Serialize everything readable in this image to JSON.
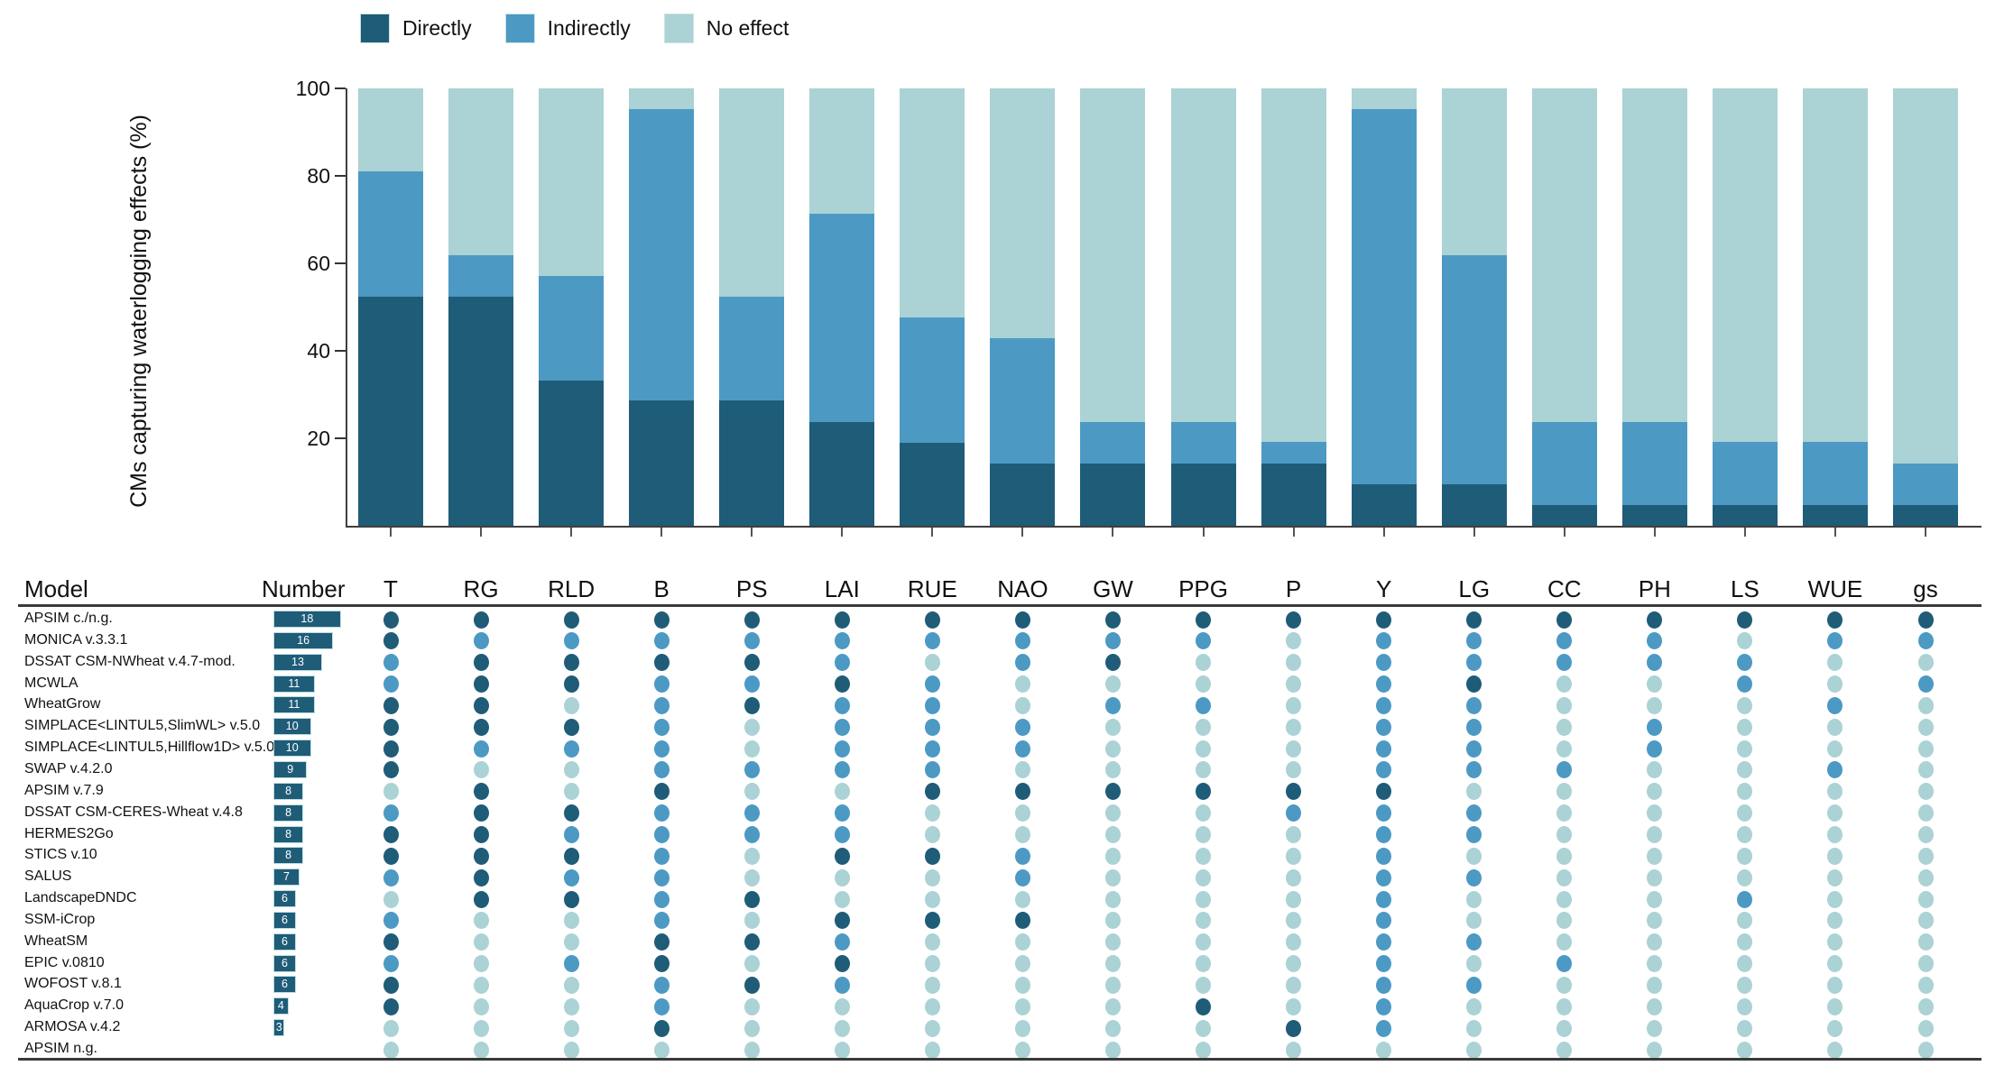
{
  "legend": {
    "items": [
      {
        "label": "Directly",
        "code": "D",
        "color": "#1f5c78"
      },
      {
        "label": "Indirectly",
        "code": "I",
        "color": "#4c99c4"
      },
      {
        "label": "No effect",
        "code": "N",
        "color": "#abd2d4"
      }
    ]
  },
  "chart_data": {
    "type": "bar",
    "stacked": true,
    "title": "",
    "xlabel": "",
    "ylabel": "CMs capturing waterlogging effects (%)",
    "ylim": [
      0,
      100
    ],
    "yticks": [
      100,
      80,
      60,
      40,
      20
    ],
    "grid": false,
    "legend_position": "top-left",
    "categories": [
      "T",
      "RG",
      "RLD",
      "B",
      "PS",
      "LAI",
      "RUE",
      "NAO",
      "GW",
      "PPG",
      "P",
      "Y",
      "LG",
      "CC",
      "PH",
      "LS",
      "WUE",
      "gs"
    ],
    "series": [
      {
        "name": "Directly",
        "color": "#1f5c78",
        "values": [
          52.4,
          52.4,
          33.3,
          28.6,
          28.6,
          23.8,
          19.0,
          14.3,
          14.3,
          14.3,
          14.3,
          9.5,
          9.5,
          4.8,
          4.8,
          4.8,
          4.8,
          4.8
        ]
      },
      {
        "name": "Indirectly",
        "color": "#4c99c4",
        "values": [
          28.6,
          9.5,
          23.8,
          66.7,
          23.8,
          47.6,
          28.6,
          28.6,
          9.5,
          9.5,
          4.8,
          85.7,
          52.4,
          19.0,
          19.0,
          14.3,
          14.3,
          9.5
        ]
      },
      {
        "name": "No effect",
        "color": "#abd2d4",
        "values": [
          19.0,
          38.1,
          42.9,
          4.8,
          47.6,
          28.6,
          52.4,
          57.1,
          76.2,
          76.2,
          81.0,
          4.8,
          38.1,
          76.2,
          76.2,
          81.0,
          81.0,
          85.7
        ]
      }
    ]
  },
  "table": {
    "model_header": "Model",
    "number_header": "Number",
    "effect_columns": [
      "T",
      "RG",
      "RLD",
      "B",
      "PS",
      "LAI",
      "RUE",
      "NAO",
      "GW",
      "PPG",
      "P",
      "Y",
      "LG",
      "CC",
      "PH",
      "LS",
      "WUE",
      "gs"
    ],
    "effect_key": {
      "D": "Directly",
      "I": "Indirectly",
      "N": "No effect"
    },
    "rows": [
      {
        "model": "APSIM c./n.g.",
        "number": 18,
        "effects": [
          "D",
          "D",
          "D",
          "D",
          "D",
          "D",
          "D",
          "D",
          "D",
          "D",
          "D",
          "D",
          "D",
          "D",
          "D",
          "D",
          "D",
          "D"
        ]
      },
      {
        "model": "MONICA v.3.3.1",
        "number": 16,
        "effects": [
          "D",
          "I",
          "I",
          "I",
          "I",
          "I",
          "I",
          "I",
          "I",
          "I",
          "N",
          "I",
          "I",
          "I",
          "I",
          "N",
          "I",
          "I"
        ]
      },
      {
        "model": "DSSAT CSM-NWheat v.4.7-mod.",
        "number": 13,
        "effects": [
          "I",
          "D",
          "D",
          "D",
          "D",
          "I",
          "N",
          "I",
          "D",
          "N",
          "N",
          "I",
          "I",
          "I",
          "I",
          "I",
          "N",
          "N"
        ]
      },
      {
        "model": "MCWLA",
        "number": 11,
        "effects": [
          "I",
          "D",
          "D",
          "I",
          "I",
          "D",
          "I",
          "N",
          "N",
          "N",
          "N",
          "I",
          "D",
          "N",
          "N",
          "I",
          "N",
          "I"
        ]
      },
      {
        "model": "WheatGrow",
        "number": 11,
        "effects": [
          "D",
          "D",
          "N",
          "I",
          "D",
          "I",
          "I",
          "N",
          "I",
          "I",
          "N",
          "I",
          "I",
          "N",
          "N",
          "N",
          "I",
          "N"
        ]
      },
      {
        "model": "SIMPLACE<LINTUL5,SlimWL> v.5.0",
        "number": 10,
        "effects": [
          "D",
          "D",
          "D",
          "I",
          "N",
          "I",
          "I",
          "I",
          "N",
          "N",
          "N",
          "I",
          "I",
          "N",
          "I",
          "N",
          "N",
          "N"
        ]
      },
      {
        "model": "SIMPLACE<LINTUL5,Hillflow1D> v.5.0",
        "number": 10,
        "effects": [
          "D",
          "I",
          "I",
          "I",
          "N",
          "I",
          "I",
          "I",
          "N",
          "N",
          "N",
          "I",
          "I",
          "N",
          "I",
          "N",
          "N",
          "N"
        ]
      },
      {
        "model": "SWAP v.4.2.0",
        "number": 9,
        "effects": [
          "D",
          "N",
          "N",
          "I",
          "I",
          "I",
          "I",
          "N",
          "N",
          "N",
          "N",
          "I",
          "I",
          "I",
          "N",
          "N",
          "I",
          "N"
        ]
      },
      {
        "model": "APSIM v.7.9",
        "number": 8,
        "effects": [
          "N",
          "D",
          "N",
          "D",
          "N",
          "N",
          "D",
          "D",
          "D",
          "D",
          "D",
          "D",
          "N",
          "N",
          "N",
          "N",
          "N",
          "N"
        ]
      },
      {
        "model": "DSSAT CSM-CERES-Wheat v.4.8",
        "number": 8,
        "effects": [
          "I",
          "D",
          "D",
          "I",
          "I",
          "I",
          "N",
          "N",
          "N",
          "N",
          "I",
          "I",
          "I",
          "N",
          "N",
          "N",
          "N",
          "N"
        ]
      },
      {
        "model": "HERMES2Go",
        "number": 8,
        "effects": [
          "D",
          "D",
          "I",
          "I",
          "I",
          "I",
          "N",
          "N",
          "N",
          "N",
          "N",
          "I",
          "I",
          "N",
          "N",
          "N",
          "N",
          "N"
        ]
      },
      {
        "model": "STICS v.10",
        "number": 8,
        "effects": [
          "D",
          "D",
          "D",
          "I",
          "N",
          "D",
          "D",
          "I",
          "N",
          "N",
          "N",
          "I",
          "N",
          "N",
          "N",
          "N",
          "N",
          "N"
        ]
      },
      {
        "model": "SALUS",
        "number": 7,
        "effects": [
          "I",
          "D",
          "I",
          "I",
          "N",
          "N",
          "N",
          "I",
          "N",
          "N",
          "N",
          "I",
          "I",
          "N",
          "N",
          "N",
          "N",
          "N"
        ]
      },
      {
        "model": "LandscapeDNDC",
        "number": 6,
        "effects": [
          "N",
          "D",
          "D",
          "I",
          "D",
          "N",
          "N",
          "N",
          "N",
          "N",
          "N",
          "I",
          "N",
          "N",
          "N",
          "I",
          "N",
          "N"
        ]
      },
      {
        "model": "SSM-iCrop",
        "number": 6,
        "effects": [
          "I",
          "N",
          "N",
          "I",
          "N",
          "D",
          "D",
          "D",
          "N",
          "N",
          "N",
          "I",
          "N",
          "N",
          "N",
          "N",
          "N",
          "N"
        ]
      },
      {
        "model": "WheatSM",
        "number": 6,
        "effects": [
          "D",
          "N",
          "N",
          "D",
          "D",
          "I",
          "N",
          "N",
          "N",
          "N",
          "N",
          "I",
          "I",
          "N",
          "N",
          "N",
          "N",
          "N"
        ]
      },
      {
        "model": "EPIC v.0810",
        "number": 6,
        "effects": [
          "I",
          "N",
          "I",
          "D",
          "N",
          "D",
          "N",
          "N",
          "N",
          "N",
          "N",
          "I",
          "N",
          "I",
          "N",
          "N",
          "N",
          "N"
        ]
      },
      {
        "model": "WOFOST v.8.1",
        "number": 6,
        "effects": [
          "D",
          "N",
          "N",
          "I",
          "D",
          "I",
          "N",
          "N",
          "N",
          "N",
          "N",
          "I",
          "I",
          "N",
          "N",
          "N",
          "N",
          "N"
        ]
      },
      {
        "model": "AquaCrop v.7.0",
        "number": 4,
        "effects": [
          "D",
          "N",
          "N",
          "I",
          "N",
          "N",
          "N",
          "N",
          "N",
          "D",
          "N",
          "I",
          "N",
          "N",
          "N",
          "N",
          "N",
          "N"
        ]
      },
      {
        "model": "ARMOSA v.4.2",
        "number": 3,
        "effects": [
          "N",
          "N",
          "N",
          "D",
          "N",
          "N",
          "N",
          "N",
          "N",
          "N",
          "D",
          "I",
          "N",
          "N",
          "N",
          "N",
          "N",
          "N"
        ]
      },
      {
        "model": "APSIM n.g.",
        "number": null,
        "effects": [
          "N",
          "N",
          "N",
          "N",
          "N",
          "N",
          "N",
          "N",
          "N",
          "N",
          "N",
          "N",
          "N",
          "N",
          "N",
          "N",
          "N",
          "N"
        ]
      }
    ]
  }
}
